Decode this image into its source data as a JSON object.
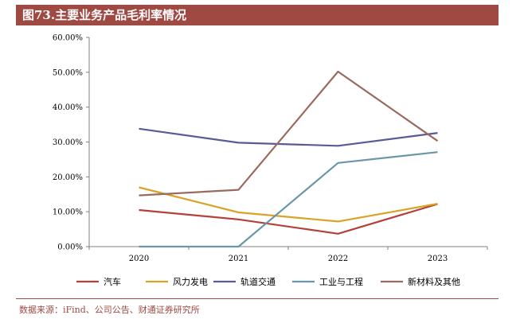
{
  "title": "图73.主要业务产品毛利率情况",
  "source": "数据来源：iFind、公司公告、财通证券研究所",
  "chart_data": {
    "type": "line",
    "title": "图73.主要业务产品毛利率情况",
    "x": [
      "2020",
      "2021",
      "2022",
      "2023"
    ],
    "yticks": [
      "0.00%",
      "10.00%",
      "20.00%",
      "30.00%",
      "40.00%",
      "50.00%",
      "60.00%"
    ],
    "ylim": [
      0,
      60
    ],
    "grid": false,
    "legend_position": "bottom",
    "series": [
      {
        "name": "汽车",
        "color": "#b5403a",
        "values": [
          10.5,
          7.8,
          3.7,
          12.2
        ]
      },
      {
        "name": "风力发电",
        "color": "#d9a326",
        "values": [
          17.0,
          9.8,
          7.2,
          12.3
        ]
      },
      {
        "name": "轨道交通",
        "color": "#5a5a96",
        "values": [
          33.8,
          29.8,
          28.9,
          32.6
        ]
      },
      {
        "name": "工业与工程",
        "color": "#6a97a8",
        "values": [
          0.0,
          0.0,
          24.0,
          27.1
        ]
      },
      {
        "name": "新材料及其他",
        "color": "#9a6a5e",
        "values": [
          14.7,
          16.3,
          50.2,
          30.3
        ]
      }
    ]
  }
}
